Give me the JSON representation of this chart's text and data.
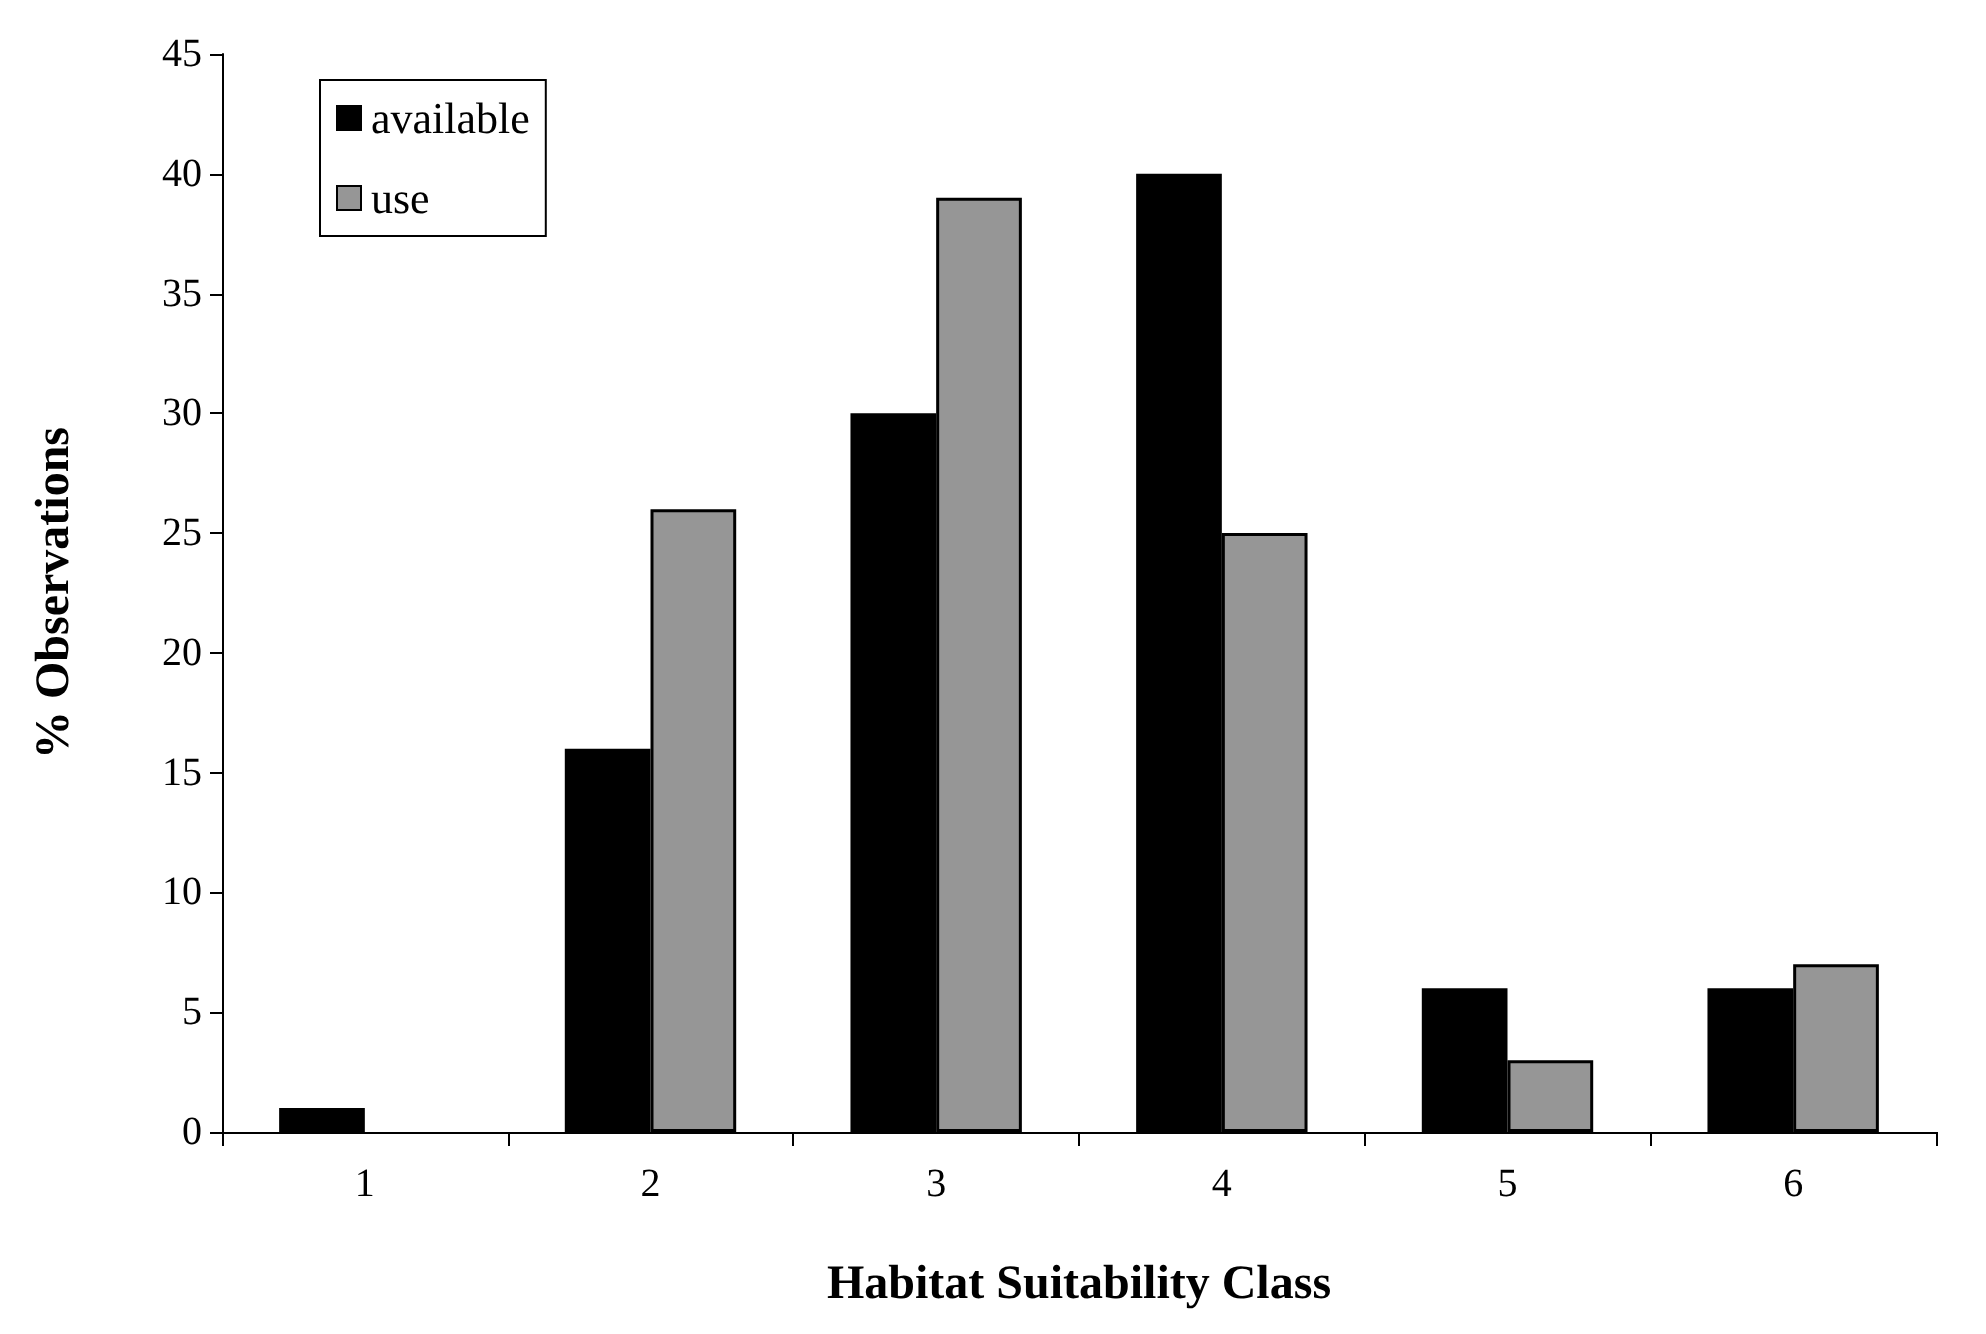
{
  "chart_data": {
    "type": "bar",
    "xlabel": "Habitat Suitability Class",
    "ylabel": "% Observations",
    "categories": [
      "1",
      "2",
      "3",
      "4",
      "5",
      "6"
    ],
    "series": [
      {
        "name": "available",
        "color": "#000000",
        "values": [
          1,
          16,
          30,
          40,
          6,
          6
        ]
      },
      {
        "name": "use",
        "color": "#969696",
        "values": [
          0,
          26,
          39,
          25,
          3,
          7
        ]
      }
    ],
    "ylim": [
      0,
      45
    ],
    "yticks": [
      0,
      5,
      10,
      15,
      20,
      25,
      30,
      35,
      40,
      45
    ],
    "grid": false,
    "legend": "top left"
  }
}
